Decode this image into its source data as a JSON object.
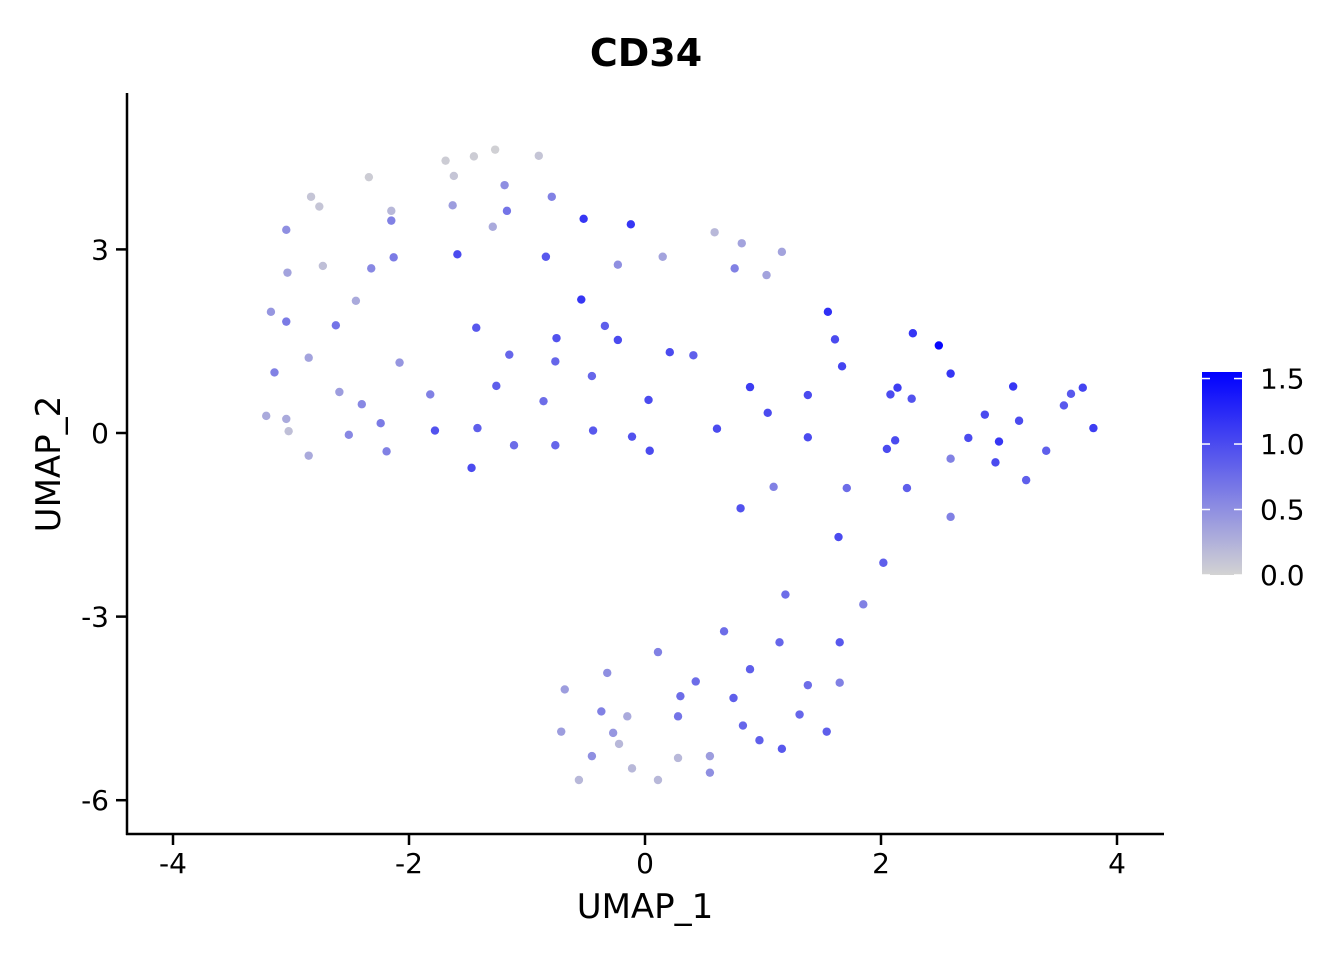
{
  "chart_data": {
    "type": "scatter",
    "title": "CD34",
    "xlabel": "UMAP_1",
    "ylabel": "UMAP_2",
    "xlim": [
      -4.4,
      4.4
    ],
    "ylim": [
      -6.6,
      5.6
    ],
    "xticks": [
      -4,
      -2,
      0,
      2,
      4
    ],
    "xtick_labels": [
      "-4",
      "-2",
      "0",
      "2",
      "4"
    ],
    "yticks": [
      -6,
      -3,
      0,
      3
    ],
    "ytick_labels": [
      "-6",
      "-3",
      "0",
      "3"
    ],
    "grid": false,
    "legend": {
      "placement": "right",
      "min": 0.0,
      "max": 1.55,
      "ticks": [
        0.0,
        0.5,
        1.0,
        1.5
      ],
      "tick_labels": [
        "0.0",
        "0.5",
        "1.0",
        "1.5"
      ],
      "low_color": "#d3d3d3",
      "high_color": "#0000ff"
    },
    "points": [
      {
        "x": -1.69,
        "y": 4.45,
        "v": 0.05
      },
      {
        "x": -1.45,
        "y": 4.52,
        "v": 0.05
      },
      {
        "x": -1.27,
        "y": 4.63,
        "v": 0.02
      },
      {
        "x": -0.9,
        "y": 4.53,
        "v": 0.1
      },
      {
        "x": -1.62,
        "y": 4.2,
        "v": 0.1
      },
      {
        "x": -2.34,
        "y": 4.18,
        "v": 0.05
      },
      {
        "x": -1.19,
        "y": 4.05,
        "v": 0.5
      },
      {
        "x": -2.83,
        "y": 3.86,
        "v": 0.1
      },
      {
        "x": -2.76,
        "y": 3.7,
        "v": 0.1
      },
      {
        "x": -1.63,
        "y": 3.72,
        "v": 0.4
      },
      {
        "x": -0.79,
        "y": 3.86,
        "v": 0.6
      },
      {
        "x": -2.15,
        "y": 3.63,
        "v": 0.2
      },
      {
        "x": -2.15,
        "y": 3.47,
        "v": 0.6
      },
      {
        "x": -1.17,
        "y": 3.63,
        "v": 0.7
      },
      {
        "x": -1.29,
        "y": 3.37,
        "v": 0.3
      },
      {
        "x": -0.52,
        "y": 3.5,
        "v": 1.15
      },
      {
        "x": -0.12,
        "y": 3.41,
        "v": 1.15
      },
      {
        "x": -3.04,
        "y": 3.32,
        "v": 0.5
      },
      {
        "x": 0.59,
        "y": 3.28,
        "v": 0.2
      },
      {
        "x": 0.82,
        "y": 3.1,
        "v": 0.35
      },
      {
        "x": 1.16,
        "y": 2.96,
        "v": 0.35
      },
      {
        "x": -1.59,
        "y": 2.92,
        "v": 1.0
      },
      {
        "x": -0.84,
        "y": 2.88,
        "v": 0.9
      },
      {
        "x": 0.15,
        "y": 2.88,
        "v": 0.35
      },
      {
        "x": -2.13,
        "y": 2.87,
        "v": 0.65
      },
      {
        "x": -2.73,
        "y": 2.73,
        "v": 0.15
      },
      {
        "x": -2.32,
        "y": 2.69,
        "v": 0.55
      },
      {
        "x": -0.23,
        "y": 2.75,
        "v": 0.5
      },
      {
        "x": 0.76,
        "y": 2.69,
        "v": 0.6
      },
      {
        "x": 1.03,
        "y": 2.58,
        "v": 0.35
      },
      {
        "x": -3.03,
        "y": 2.62,
        "v": 0.35
      },
      {
        "x": -2.45,
        "y": 2.16,
        "v": 0.3
      },
      {
        "x": -0.54,
        "y": 2.18,
        "v": 1.15
      },
      {
        "x": 1.55,
        "y": 1.98,
        "v": 1.2
      },
      {
        "x": -3.17,
        "y": 1.98,
        "v": 0.45
      },
      {
        "x": -3.04,
        "y": 1.82,
        "v": 0.65
      },
      {
        "x": -2.62,
        "y": 1.76,
        "v": 0.7
      },
      {
        "x": -1.43,
        "y": 1.72,
        "v": 0.9
      },
      {
        "x": -0.34,
        "y": 1.75,
        "v": 0.85
      },
      {
        "x": 2.27,
        "y": 1.63,
        "v": 1.15
      },
      {
        "x": -0.75,
        "y": 1.55,
        "v": 0.95
      },
      {
        "x": -0.23,
        "y": 1.52,
        "v": 1.0
      },
      {
        "x": 1.61,
        "y": 1.53,
        "v": 1.0
      },
      {
        "x": 2.49,
        "y": 1.43,
        "v": 1.5
      },
      {
        "x": 0.21,
        "y": 1.32,
        "v": 1.0
      },
      {
        "x": 0.41,
        "y": 1.27,
        "v": 0.85
      },
      {
        "x": -1.15,
        "y": 1.28,
        "v": 0.8
      },
      {
        "x": -2.85,
        "y": 1.23,
        "v": 0.35
      },
      {
        "x": -2.08,
        "y": 1.15,
        "v": 0.45
      },
      {
        "x": -0.76,
        "y": 1.17,
        "v": 0.8
      },
      {
        "x": 1.67,
        "y": 1.09,
        "v": 1.05
      },
      {
        "x": -3.14,
        "y": 0.99,
        "v": 0.6
      },
      {
        "x": 2.59,
        "y": 0.97,
        "v": 1.15
      },
      {
        "x": -0.45,
        "y": 0.93,
        "v": 0.8
      },
      {
        "x": -1.26,
        "y": 0.77,
        "v": 0.85
      },
      {
        "x": 0.89,
        "y": 0.75,
        "v": 1.1
      },
      {
        "x": 2.14,
        "y": 0.74,
        "v": 1.1
      },
      {
        "x": 3.12,
        "y": 0.76,
        "v": 1.15
      },
      {
        "x": 3.71,
        "y": 0.74,
        "v": 1.05
      },
      {
        "x": -2.59,
        "y": 0.67,
        "v": 0.4
      },
      {
        "x": -1.82,
        "y": 0.63,
        "v": 0.6
      },
      {
        "x": 1.38,
        "y": 0.62,
        "v": 1.0
      },
      {
        "x": 2.08,
        "y": 0.63,
        "v": 1.0
      },
      {
        "x": 3.61,
        "y": 0.64,
        "v": 0.9
      },
      {
        "x": 0.03,
        "y": 0.54,
        "v": 1.0
      },
      {
        "x": 2.26,
        "y": 0.56,
        "v": 0.95
      },
      {
        "x": -0.86,
        "y": 0.52,
        "v": 0.75
      },
      {
        "x": -2.4,
        "y": 0.47,
        "v": 0.55
      },
      {
        "x": 3.55,
        "y": 0.45,
        "v": 0.9
      },
      {
        "x": 1.04,
        "y": 0.33,
        "v": 1.0
      },
      {
        "x": 2.88,
        "y": 0.3,
        "v": 1.0
      },
      {
        "x": -3.21,
        "y": 0.28,
        "v": 0.3
      },
      {
        "x": -3.04,
        "y": 0.23,
        "v": 0.3
      },
      {
        "x": 3.17,
        "y": 0.2,
        "v": 1.0
      },
      {
        "x": -2.24,
        "y": 0.16,
        "v": 0.65
      },
      {
        "x": 3.8,
        "y": 0.08,
        "v": 1.1
      },
      {
        "x": -1.78,
        "y": 0.04,
        "v": 0.95
      },
      {
        "x": -1.42,
        "y": 0.08,
        "v": 0.85
      },
      {
        "x": -0.44,
        "y": 0.04,
        "v": 0.9
      },
      {
        "x": 0.61,
        "y": 0.07,
        "v": 1.0
      },
      {
        "x": -3.02,
        "y": 0.03,
        "v": 0.15
      },
      {
        "x": -2.51,
        "y": -0.03,
        "v": 0.55
      },
      {
        "x": -0.11,
        "y": -0.06,
        "v": 0.95
      },
      {
        "x": 1.38,
        "y": -0.07,
        "v": 1.0
      },
      {
        "x": 2.74,
        "y": -0.08,
        "v": 1.0
      },
      {
        "x": 2.12,
        "y": -0.12,
        "v": 1.0
      },
      {
        "x": 3.0,
        "y": -0.14,
        "v": 1.15
      },
      {
        "x": -1.11,
        "y": -0.2,
        "v": 0.75
      },
      {
        "x": -0.76,
        "y": -0.2,
        "v": 0.8
      },
      {
        "x": 2.05,
        "y": -0.26,
        "v": 1.0
      },
      {
        "x": 0.04,
        "y": -0.29,
        "v": 1.0
      },
      {
        "x": 3.4,
        "y": -0.29,
        "v": 0.85
      },
      {
        "x": -2.19,
        "y": -0.3,
        "v": 0.6
      },
      {
        "x": -2.85,
        "y": -0.37,
        "v": 0.3
      },
      {
        "x": 2.59,
        "y": -0.42,
        "v": 0.6
      },
      {
        "x": 2.97,
        "y": -0.48,
        "v": 1.0
      },
      {
        "x": -1.47,
        "y": -0.57,
        "v": 1.0
      },
      {
        "x": 3.23,
        "y": -0.77,
        "v": 0.85
      },
      {
        "x": 1.09,
        "y": -0.88,
        "v": 0.6
      },
      {
        "x": 1.71,
        "y": -0.9,
        "v": 0.75
      },
      {
        "x": 2.22,
        "y": -0.9,
        "v": 0.85
      },
      {
        "x": 0.81,
        "y": -1.23,
        "v": 0.95
      },
      {
        "x": 2.59,
        "y": -1.37,
        "v": 0.6
      },
      {
        "x": 1.64,
        "y": -1.7,
        "v": 1.0
      },
      {
        "x": 2.02,
        "y": -2.12,
        "v": 0.85
      },
      {
        "x": 1.19,
        "y": -2.64,
        "v": 0.75
      },
      {
        "x": 1.85,
        "y": -2.8,
        "v": 0.6
      },
      {
        "x": 0.67,
        "y": -3.24,
        "v": 0.75
      },
      {
        "x": 1.14,
        "y": -3.42,
        "v": 0.8
      },
      {
        "x": 1.65,
        "y": -3.42,
        "v": 0.9
      },
      {
        "x": 0.11,
        "y": -3.58,
        "v": 0.6
      },
      {
        "x": 0.89,
        "y": -3.86,
        "v": 0.85
      },
      {
        "x": -0.32,
        "y": -3.92,
        "v": 0.5
      },
      {
        "x": 0.43,
        "y": -4.06,
        "v": 0.75
      },
      {
        "x": 1.38,
        "y": -4.12,
        "v": 0.75
      },
      {
        "x": 1.65,
        "y": -4.08,
        "v": 0.6
      },
      {
        "x": -0.68,
        "y": -4.19,
        "v": 0.4
      },
      {
        "x": 0.3,
        "y": -4.3,
        "v": 0.75
      },
      {
        "x": 0.75,
        "y": -4.33,
        "v": 0.85
      },
      {
        "x": -0.37,
        "y": -4.55,
        "v": 0.6
      },
      {
        "x": -0.15,
        "y": -4.63,
        "v": 0.3
      },
      {
        "x": 0.28,
        "y": -4.63,
        "v": 0.7
      },
      {
        "x": 1.31,
        "y": -4.6,
        "v": 0.8
      },
      {
        "x": 0.83,
        "y": -4.78,
        "v": 0.8
      },
      {
        "x": -0.71,
        "y": -4.88,
        "v": 0.4
      },
      {
        "x": -0.27,
        "y": -4.9,
        "v": 0.45
      },
      {
        "x": 1.54,
        "y": -4.88,
        "v": 0.85
      },
      {
        "x": -0.22,
        "y": -5.08,
        "v": 0.2
      },
      {
        "x": 0.97,
        "y": -5.02,
        "v": 0.85
      },
      {
        "x": 1.16,
        "y": -5.16,
        "v": 0.9
      },
      {
        "x": -0.45,
        "y": -5.28,
        "v": 0.5
      },
      {
        "x": 0.55,
        "y": -5.28,
        "v": 0.4
      },
      {
        "x": 0.28,
        "y": -5.31,
        "v": 0.2
      },
      {
        "x": -0.11,
        "y": -5.48,
        "v": 0.2
      },
      {
        "x": 0.55,
        "y": -5.55,
        "v": 0.5
      },
      {
        "x": -0.56,
        "y": -5.67,
        "v": 0.2
      },
      {
        "x": 0.11,
        "y": -5.67,
        "v": 0.2
      }
    ]
  }
}
